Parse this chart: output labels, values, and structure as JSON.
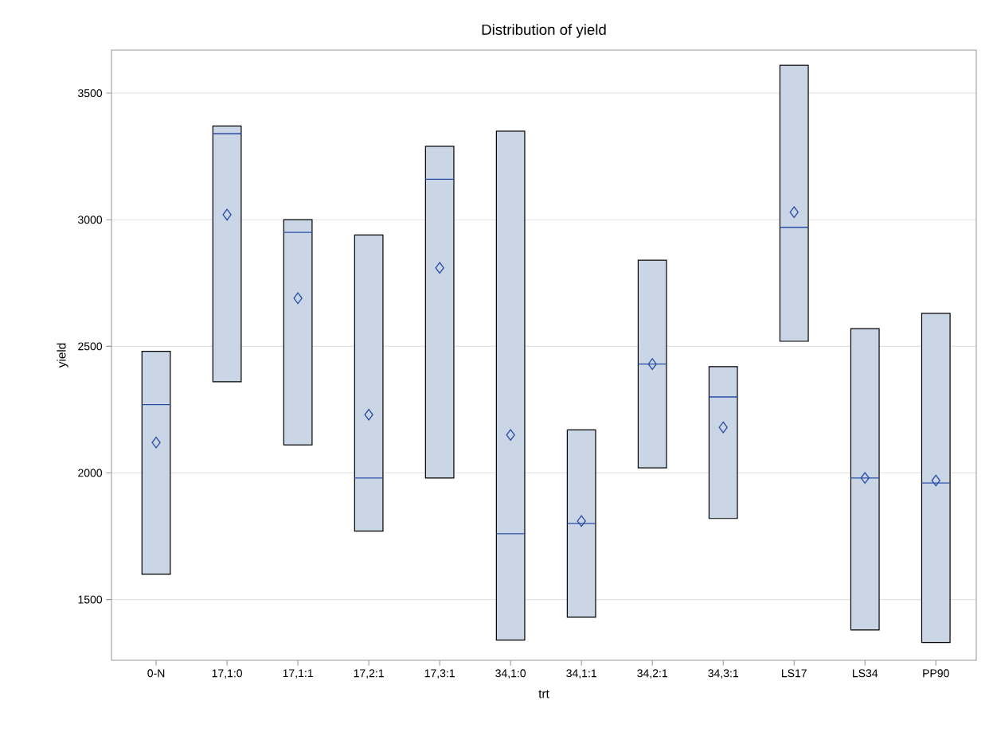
{
  "chart_data": {
    "type": "box",
    "title": "Distribution of yield",
    "xlabel": "trt",
    "ylabel": "yield",
    "color": "#cad5e5",
    "marker": "diamond",
    "grid": "y",
    "categories": [
      "0-N",
      "17,1:0",
      "17,1:1",
      "17,2:1",
      "17,3:1",
      "34,1:0",
      "34,1:1",
      "34,2:1",
      "34,3:1",
      "LS17",
      "LS34",
      "PP90"
    ],
    "boxes": [
      {
        "low": 1600,
        "q1": 1600,
        "median": 2270,
        "q3": 2480,
        "high": 2480,
        "mean": 2120
      },
      {
        "low": 2360,
        "q1": 2360,
        "median": 3340,
        "q3": 3370,
        "high": 3370,
        "mean": 3020
      },
      {
        "low": 2110,
        "q1": 2110,
        "median": 2950,
        "q3": 3000,
        "high": 3000,
        "mean": 2690
      },
      {
        "low": 1770,
        "q1": 1770,
        "median": 1980,
        "q3": 2940,
        "high": 2940,
        "mean": 2230
      },
      {
        "low": 1980,
        "q1": 1980,
        "median": 3160,
        "q3": 3290,
        "high": 3290,
        "mean": 2810
      },
      {
        "low": 1340,
        "q1": 1340,
        "median": 1760,
        "q3": 3350,
        "high": 3350,
        "mean": 2150
      },
      {
        "low": 1430,
        "q1": 1430,
        "median": 1800,
        "q3": 2170,
        "high": 2170,
        "mean": 1810
      },
      {
        "low": 2020,
        "q1": 2020,
        "median": 2430,
        "q3": 2840,
        "high": 2840,
        "mean": 2430
      },
      {
        "low": 1820,
        "q1": 1820,
        "median": 2300,
        "q3": 2420,
        "high": 2420,
        "mean": 2180
      },
      {
        "low": 2520,
        "q1": 2520,
        "median": 2970,
        "q3": 3610,
        "high": 3610,
        "mean": 3030
      },
      {
        "low": 1380,
        "q1": 1380,
        "median": 1980,
        "q3": 2570,
        "high": 2570,
        "mean": 1980
      },
      {
        "low": 1330,
        "q1": 1330,
        "median": 1960,
        "q3": 2630,
        "high": 2630,
        "mean": 1970
      }
    ],
    "ylim": [
      1260,
      3670
    ],
    "yticks": [
      1500,
      2000,
      2500,
      3000,
      3500
    ]
  }
}
